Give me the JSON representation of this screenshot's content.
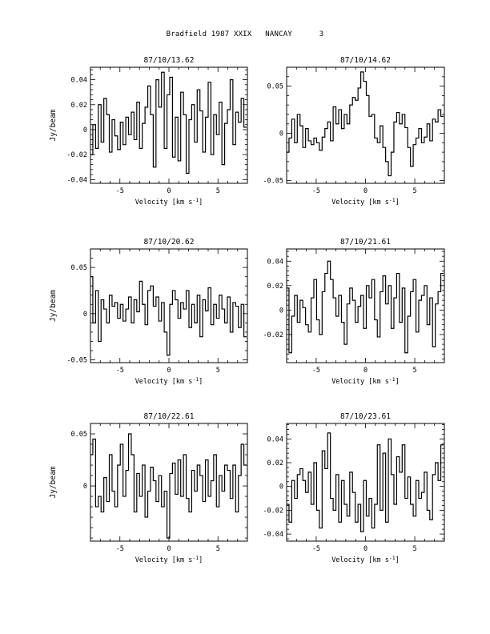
{
  "page_title": "Bradfield 1987 XXIX   NANCAY      3",
  "chart_data": [
    {
      "type": "line",
      "title": "87/10/13.62",
      "xlabel": "Velocity [km s$^{-1}$]",
      "ylabel": "Jy/beam",
      "xlim": [
        -8,
        8
      ],
      "ylim": [
        -0.043,
        0.05
      ],
      "xticks": [
        -5,
        0,
        5
      ],
      "yticks": [
        0.04,
        0.02,
        0,
        -0.02,
        -0.04
      ],
      "ytick_labels": [
        "0.04",
        "0.02",
        "0",
        "-0.02",
        "-0.04"
      ],
      "grid": false,
      "series": [
        {
          "step": true,
          "x": [
            -7.9,
            -7.62,
            -7.34,
            -7.06,
            -6.78,
            -6.5,
            -6.22,
            -5.94,
            -5.66,
            -5.38,
            -5.1,
            -4.82,
            -4.54,
            -4.26,
            -3.98,
            -3.7,
            -3.42,
            -3.14,
            -2.86,
            -2.58,
            -2.3,
            -2.02,
            -1.74,
            -1.46,
            -1.18,
            -0.9,
            -0.62,
            -0.34,
            -0.06,
            0.22,
            0.5,
            0.78,
            1.06,
            1.34,
            1.62,
            1.9,
            2.18,
            2.46,
            2.74,
            3.02,
            3.3,
            3.58,
            3.86,
            4.14,
            4.42,
            4.7,
            4.98,
            5.26,
            5.54,
            5.82,
            6.1,
            6.38,
            6.66,
            6.94,
            7.22,
            7.5,
            7.78
          ],
          "y": [
            -0.02,
            0.004,
            -0.015,
            0.02,
            -0.01,
            0.025,
            0.012,
            -0.018,
            0.008,
            -0.005,
            -0.016,
            0.006,
            -0.012,
            0.01,
            -0.004,
            0.014,
            -0.008,
            0.022,
            -0.015,
            0.005,
            0.018,
            0.035,
            0.012,
            -0.03,
            0.04,
            0.018,
            0.046,
            -0.015,
            0.028,
            0.042,
            -0.022,
            0.01,
            -0.025,
            0.03,
            0.012,
            -0.035,
            0.008,
            0.02,
            -0.01,
            0.032,
            0.015,
            -0.018,
            0.01,
            0.038,
            -0.02,
            0.012,
            -0.004,
            0.022,
            -0.028,
            0.005,
            0.016,
            0.04,
            -0.012,
            0.014,
            0.006,
            0.025,
            0.002
          ]
        }
      ]
    },
    {
      "type": "line",
      "title": "87/10/14.62",
      "xlabel": "Velocity [km s$^{-1}$]",
      "ylabel": "",
      "xlim": [
        -8,
        8
      ],
      "ylim": [
        -0.053,
        0.07
      ],
      "xticks": [
        -5,
        0,
        5
      ],
      "yticks": [
        0.05,
        0,
        -0.05
      ],
      "ytick_labels": [
        "0.05",
        "0",
        "-0.05"
      ],
      "grid": false,
      "series": [
        {
          "step": true,
          "x": [
            -7.9,
            -7.62,
            -7.34,
            -7.06,
            -6.78,
            -6.5,
            -6.22,
            -5.94,
            -5.66,
            -5.38,
            -5.1,
            -4.82,
            -4.54,
            -4.26,
            -3.98,
            -3.7,
            -3.42,
            -3.14,
            -2.86,
            -2.58,
            -2.3,
            -2.02,
            -1.74,
            -1.46,
            -1.18,
            -0.9,
            -0.62,
            -0.34,
            -0.06,
            0.22,
            0.5,
            0.78,
            1.06,
            1.34,
            1.62,
            1.9,
            2.18,
            2.46,
            2.74,
            3.02,
            3.3,
            3.58,
            3.86,
            4.14,
            4.42,
            4.7,
            4.98,
            5.26,
            5.54,
            5.82,
            6.1,
            6.38,
            6.66,
            6.94,
            7.22,
            7.5,
            7.78
          ],
          "y": [
            -0.02,
            -0.005,
            0.015,
            -0.01,
            0.02,
            0.008,
            -0.015,
            0.005,
            -0.008,
            -0.012,
            -0.005,
            -0.01,
            -0.018,
            -0.004,
            0.005,
            0.012,
            -0.008,
            0.028,
            0.01,
            0.025,
            0.005,
            0.02,
            0.01,
            0.03,
            0.038,
            0.035,
            0.048,
            0.065,
            0.055,
            0.04,
            0.018,
            0.02,
            -0.005,
            -0.01,
            0.008,
            -0.015,
            -0.03,
            -0.045,
            -0.02,
            0.012,
            0.022,
            0.01,
            0.02,
            0.006,
            -0.015,
            -0.035,
            -0.012,
            -0.005,
            0.005,
            -0.01,
            -0.004,
            0.01,
            -0.008,
            0.015,
            0.012,
            0.025,
            0.018
          ]
        }
      ]
    },
    {
      "type": "line",
      "title": "87/10/20.62",
      "xlabel": "Velocity [km s$^{-1}$]",
      "ylabel": "Jy/beam",
      "xlim": [
        -8,
        8
      ],
      "ylim": [
        -0.053,
        0.07
      ],
      "xticks": [
        -5,
        0,
        5
      ],
      "yticks": [
        0.05,
        0,
        -0.05
      ],
      "ytick_labels": [
        "0.05",
        "0",
        "-0.05"
      ],
      "grid": false,
      "series": [
        {
          "step": true,
          "x": [
            -7.9,
            -7.62,
            -7.34,
            -7.06,
            -6.78,
            -6.5,
            -6.22,
            -5.94,
            -5.66,
            -5.38,
            -5.1,
            -4.82,
            -4.54,
            -4.26,
            -3.98,
            -3.7,
            -3.42,
            -3.14,
            -2.86,
            -2.58,
            -2.3,
            -2.02,
            -1.74,
            -1.46,
            -1.18,
            -0.9,
            -0.62,
            -0.34,
            -0.06,
            0.22,
            0.5,
            0.78,
            1.06,
            1.34,
            1.62,
            1.9,
            2.18,
            2.46,
            2.74,
            3.02,
            3.3,
            3.58,
            3.86,
            4.14,
            4.42,
            4.7,
            4.98,
            5.26,
            5.54,
            5.82,
            6.1,
            6.38,
            6.66,
            6.94,
            7.22,
            7.5,
            7.78
          ],
          "y": [
            0.04,
            -0.01,
            0.025,
            -0.03,
            0.015,
            0.005,
            -0.01,
            0.02,
            0.008,
            0.012,
            -0.005,
            0.01,
            -0.008,
            0.005,
            0.018,
            -0.01,
            0.015,
            0.002,
            0.035,
            0.01,
            -0.012,
            0.025,
            0.03,
            0.008,
            0.018,
            -0.008,
            0.012,
            -0.02,
            -0.045,
            0.01,
            0.025,
            0.015,
            -0.005,
            0.012,
            0.005,
            0.025,
            -0.015,
            0.01,
            -0.01,
            0.02,
            -0.025,
            0.015,
            0.003,
            0.028,
            -0.012,
            0.01,
            -0.005,
            0.02,
            0.005,
            -0.01,
            0.018,
            -0.02,
            0.012,
            0.008,
            -0.015,
            0.01,
            -0.025
          ]
        }
      ]
    },
    {
      "type": "line",
      "title": "87/10/21.61",
      "xlabel": "Velocity [km s$^{-1}$]",
      "ylabel": "",
      "xlim": [
        -8,
        8
      ],
      "ylim": [
        -0.043,
        0.05
      ],
      "xticks": [
        -5,
        0,
        5
      ],
      "yticks": [
        0.04,
        0.02,
        0,
        -0.02
      ],
      "ytick_labels": [
        "0.04",
        "0.02",
        "0",
        "-0.02"
      ],
      "grid": false,
      "series": [
        {
          "step": true,
          "x": [
            -7.9,
            -7.62,
            -7.34,
            -7.06,
            -6.78,
            -6.5,
            -6.22,
            -5.94,
            -5.66,
            -5.38,
            -5.1,
            -4.82,
            -4.54,
            -4.26,
            -3.98,
            -3.7,
            -3.42,
            -3.14,
            -2.86,
            -2.58,
            -2.3,
            -2.02,
            -1.74,
            -1.46,
            -1.18,
            -0.9,
            -0.62,
            -0.34,
            -0.06,
            0.22,
            0.5,
            0.78,
            1.06,
            1.34,
            1.62,
            1.9,
            2.18,
            2.46,
            2.74,
            3.02,
            3.3,
            3.58,
            3.86,
            4.14,
            4.42,
            4.7,
            4.98,
            5.26,
            5.54,
            5.82,
            6.1,
            6.38,
            6.66,
            6.94,
            7.22,
            7.5,
            7.78
          ],
          "y": [
            0.018,
            -0.035,
            -0.005,
            0.012,
            -0.01,
            0.008,
            0.002,
            -0.012,
            -0.018,
            0.01,
            0.025,
            -0.008,
            -0.02,
            0.015,
            0.03,
            0.04,
            0.025,
            0.01,
            -0.005,
            0.012,
            -0.01,
            -0.028,
            0.005,
            0.018,
            0.008,
            -0.01,
            0.003,
            0.012,
            -0.015,
            0.02,
            0.01,
            0.025,
            -0.008,
            -0.022,
            0.015,
            0.028,
            0.005,
            0.02,
            -0.015,
            0.01,
            0.03,
            -0.01,
            0.018,
            -0.035,
            -0.005,
            0.015,
            0.025,
            -0.018,
            0.008,
            0.012,
            0.02,
            -0.012,
            0.01,
            -0.03,
            0.005,
            0.015,
            0.03
          ]
        }
      ]
    },
    {
      "type": "line",
      "title": "87/10/22.61",
      "xlabel": "Velocity [km s$^{-1}$]",
      "ylabel": "Jy/beam",
      "xlim": [
        -8,
        8
      ],
      "ylim": [
        -0.053,
        0.06
      ],
      "xticks": [
        -5,
        0,
        5
      ],
      "yticks": [
        0.05,
        0
      ],
      "ytick_labels": [
        "0.05",
        "0"
      ],
      "grid": false,
      "series": [
        {
          "step": true,
          "x": [
            -7.9,
            -7.62,
            -7.34,
            -7.06,
            -6.78,
            -6.5,
            -6.22,
            -5.94,
            -5.66,
            -5.38,
            -5.1,
            -4.82,
            -4.54,
            -4.26,
            -3.98,
            -3.7,
            -3.42,
            -3.14,
            -2.86,
            -2.58,
            -2.3,
            -2.02,
            -1.74,
            -1.46,
            -1.18,
            -0.9,
            -0.62,
            -0.34,
            -0.06,
            0.22,
            0.5,
            0.78,
            1.06,
            1.34,
            1.62,
            1.9,
            2.18,
            2.46,
            2.74,
            3.02,
            3.3,
            3.58,
            3.86,
            4.14,
            4.42,
            4.7,
            4.98,
            5.26,
            5.54,
            5.82,
            6.1,
            6.38,
            6.66,
            6.94,
            7.22,
            7.5,
            7.78
          ],
          "y": [
            0.03,
            0.045,
            -0.02,
            -0.01,
            -0.025,
            0.008,
            -0.015,
            0.03,
            -0.005,
            -0.02,
            0.02,
            0.04,
            -0.01,
            0.015,
            0.05,
            0.03,
            -0.025,
            0.012,
            -0.01,
            0.02,
            -0.03,
            -0.005,
            0.018,
            0.005,
            -0.015,
            0.01,
            -0.02,
            -0.005,
            -0.05,
            0.012,
            0.022,
            -0.008,
            0.025,
            -0.01,
            0.03,
            -0.012,
            -0.025,
            0.015,
            -0.005,
            0.02,
            0.01,
            -0.015,
            0.025,
            -0.01,
            0.005,
            0.03,
            -0.02,
            0.01,
            -0.005,
            0.02,
            0.015,
            -0.012,
            0.02,
            -0.025,
            0.01,
            0.04,
            0.02
          ]
        }
      ]
    },
    {
      "type": "line",
      "title": "87/10/23.61",
      "xlabel": "Velocity [km s$^{-1}$]",
      "ylabel": "",
      "xlim": [
        -8,
        8
      ],
      "ylim": [
        -0.046,
        0.053
      ],
      "xticks": [
        -5,
        0,
        5
      ],
      "yticks": [
        0.04,
        0.02,
        0,
        -0.02,
        -0.04
      ],
      "ytick_labels": [
        "0.04",
        "0.02",
        "0",
        "-0.02",
        "-0.04"
      ],
      "grid": false,
      "series": [
        {
          "step": true,
          "x": [
            -7.9,
            -7.62,
            -7.34,
            -7.06,
            -6.78,
            -6.5,
            -6.22,
            -5.94,
            -5.66,
            -5.38,
            -5.1,
            -4.82,
            -4.54,
            -4.26,
            -3.98,
            -3.7,
            -3.42,
            -3.14,
            -2.86,
            -2.58,
            -2.3,
            -2.02,
            -1.74,
            -1.46,
            -1.18,
            -0.9,
            -0.62,
            -0.34,
            -0.06,
            0.22,
            0.5,
            0.78,
            1.06,
            1.34,
            1.62,
            1.9,
            2.18,
            2.46,
            2.74,
            3.02,
            3.3,
            3.58,
            3.86,
            4.14,
            4.42,
            4.7,
            4.98,
            5.26,
            5.54,
            5.82,
            6.1,
            6.38,
            6.66,
            6.94,
            7.22,
            7.5,
            7.78
          ],
          "y": [
            -0.015,
            -0.03,
            0.005,
            -0.01,
            0.01,
            0.015,
            0.005,
            -0.005,
            0.012,
            -0.015,
            0.02,
            -0.02,
            -0.035,
            0.03,
            0.015,
            0.045,
            -0.01,
            -0.02,
            0.01,
            -0.03,
            0.005,
            -0.015,
            -0.025,
            0.012,
            -0.005,
            -0.03,
            -0.015,
            -0.038,
            0.005,
            -0.025,
            -0.01,
            -0.035,
            -0.015,
            0.035,
            -0.02,
            0.028,
            -0.03,
            0.04,
            0.01,
            -0.015,
            0.025,
            0.012,
            0.035,
            -0.01,
            0.008,
            -0.015,
            -0.025,
            0.005,
            -0.01,
            -0.005,
            0.012,
            -0.02,
            -0.028,
            0.01,
            0.02,
            0.005,
            0.035
          ]
        }
      ]
    }
  ]
}
